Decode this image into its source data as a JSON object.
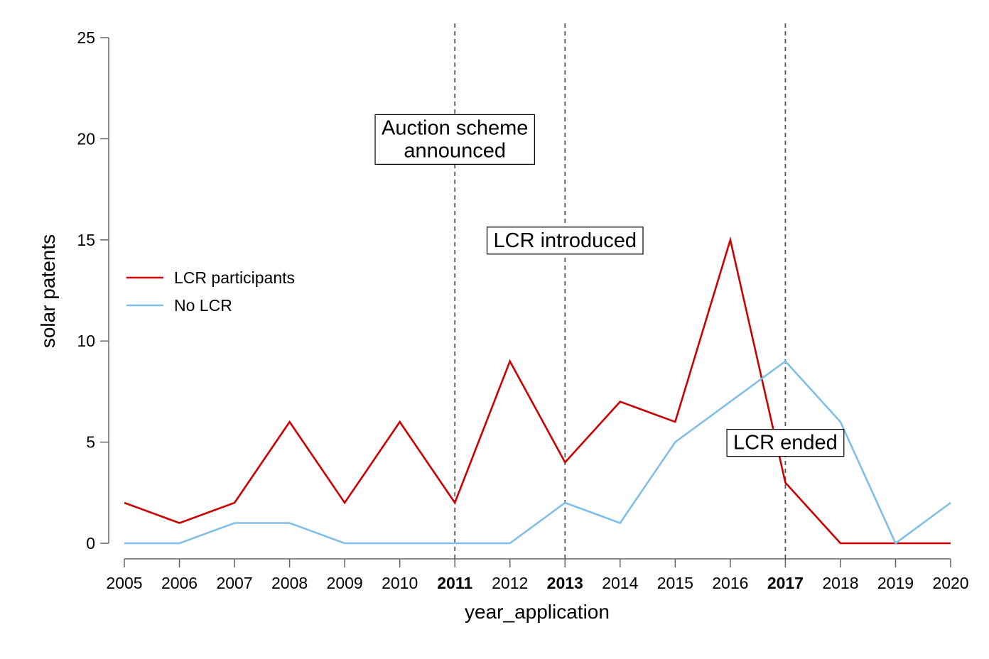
{
  "chart_data": {
    "type": "line",
    "xlabel": "year_application",
    "ylabel": "solar patents",
    "ylim": [
      0,
      25
    ],
    "yticks": [
      0,
      5,
      10,
      15,
      20,
      25
    ],
    "x": [
      2005,
      2006,
      2007,
      2008,
      2009,
      2010,
      2011,
      2012,
      2013,
      2014,
      2015,
      2016,
      2017,
      2018,
      2019,
      2020
    ],
    "bold_x": [
      2011,
      2013,
      2017
    ],
    "series": [
      {
        "name": "LCR participants",
        "color": "#cc0000",
        "values": [
          2,
          1,
          2,
          6,
          2,
          6,
          2,
          9,
          4,
          7,
          6,
          15,
          3,
          0,
          0,
          0
        ]
      },
      {
        "name": "No LCR",
        "color": "#7fbfe8",
        "values": [
          0,
          0,
          1,
          1,
          0,
          0,
          0,
          0,
          2,
          1,
          5,
          7,
          9,
          6,
          0,
          2
        ]
      }
    ],
    "vlines": [
      2011,
      2013,
      2017
    ],
    "annotations": [
      {
        "lines": [
          "Auction scheme",
          "announced"
        ],
        "x": 2011,
        "y": 20
      },
      {
        "lines": [
          "LCR introduced"
        ],
        "x": 2013,
        "y": 15
      },
      {
        "lines": [
          "LCR ended"
        ],
        "x": 2017,
        "y": 5
      }
    ],
    "legend_position": "left",
    "grid": false
  }
}
